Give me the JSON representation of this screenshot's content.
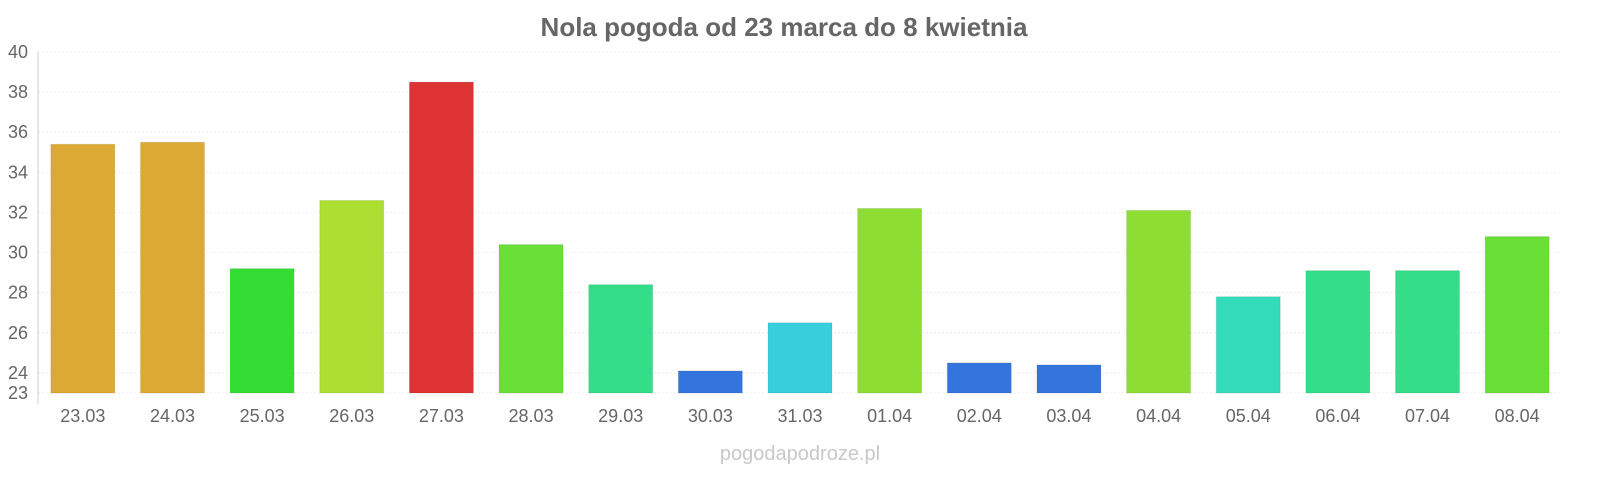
{
  "chart_data": {
    "type": "bar",
    "title": "Nola pogoda od 23 marca do 8 kwietnia",
    "xlabel": "",
    "ylabel": "",
    "ylim": [
      23,
      40
    ],
    "yticks": [
      23,
      24,
      26,
      28,
      30,
      32,
      34,
      36,
      38,
      40
    ],
    "grid": true,
    "categories": [
      "23.03",
      "24.03",
      "25.03",
      "26.03",
      "27.03",
      "28.03",
      "29.03",
      "30.03",
      "31.03",
      "01.04",
      "02.04",
      "03.04",
      "04.04",
      "05.04",
      "06.04",
      "07.04",
      "08.04"
    ],
    "values": [
      35.4,
      35.5,
      29.2,
      32.6,
      38.5,
      30.4,
      28.4,
      24.1,
      26.5,
      32.2,
      24.5,
      24.4,
      32.1,
      27.8,
      29.1,
      29.1,
      30.8
    ],
    "colors": [
      "#dba934",
      "#dba934",
      "#33dd33",
      "#addf33",
      "#dd3333",
      "#6adf36",
      "#34dd88",
      "#3375dd",
      "#36cfdb",
      "#8ddd33",
      "#3375dd",
      "#3375dd",
      "#8ddd33",
      "#34dbbb",
      "#34dd88",
      "#34dd88",
      "#6adf36"
    ]
  },
  "watermark": "pogodapodroze.pl"
}
